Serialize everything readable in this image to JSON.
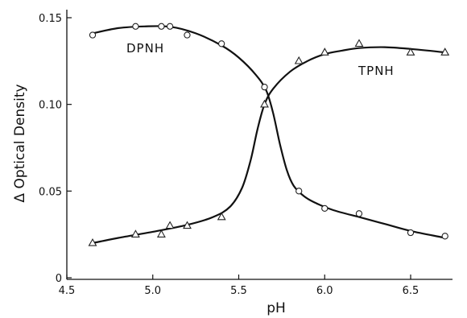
{
  "chart_data": {
    "type": "line",
    "title": "",
    "xlabel": "pH",
    "ylabel": "Δ Optical Density",
    "xlim": [
      4.5,
      6.8
    ],
    "ylim": [
      0,
      0.155
    ],
    "x_ticks": [
      4.5,
      5.0,
      5.5,
      6.0,
      6.5
    ],
    "x_tick_labels": [
      "4.5",
      "5.0",
      "5.5",
      "6.0",
      "6.5"
    ],
    "y_ticks": [
      0,
      0.05,
      0.1,
      0.15
    ],
    "y_tick_labels": [
      "0",
      "0.05",
      "0.10",
      "0.15"
    ],
    "grid": false,
    "legend": "none (series labelled directly on curves)",
    "series": [
      {
        "name": "DPNH",
        "marker": "circle",
        "x": [
          4.65,
          4.9,
          5.05,
          5.1,
          5.2,
          5.4,
          5.65,
          5.85,
          6.0,
          6.2,
          6.5,
          6.7
        ],
        "y": [
          0.14,
          0.145,
          0.145,
          0.145,
          0.14,
          0.135,
          0.11,
          0.05,
          0.04,
          0.037,
          0.026,
          0.024
        ],
        "curve": [
          [
            4.65,
            0.141
          ],
          [
            4.8,
            0.144
          ],
          [
            4.95,
            0.145
          ],
          [
            5.1,
            0.1448
          ],
          [
            5.25,
            0.141
          ],
          [
            5.4,
            0.134
          ],
          [
            5.5,
            0.127
          ],
          [
            5.6,
            0.117
          ],
          [
            5.66,
            0.108
          ],
          [
            5.7,
            0.095
          ],
          [
            5.74,
            0.077
          ],
          [
            5.78,
            0.062
          ],
          [
            5.82,
            0.053
          ],
          [
            5.88,
            0.047
          ],
          [
            5.95,
            0.043
          ],
          [
            6.05,
            0.039
          ],
          [
            6.2,
            0.035
          ],
          [
            6.35,
            0.031
          ],
          [
            6.5,
            0.027
          ],
          [
            6.7,
            0.023
          ]
        ]
      },
      {
        "name": "TPNH",
        "marker": "triangle",
        "x": [
          4.65,
          4.9,
          5.05,
          5.1,
          5.2,
          5.4,
          5.65,
          5.85,
          6.0,
          6.2,
          6.5,
          6.7
        ],
        "y": [
          0.02,
          0.025,
          0.025,
          0.03,
          0.03,
          0.035,
          0.1,
          0.125,
          0.13,
          0.135,
          0.13,
          0.13
        ],
        "curve": [
          [
            4.65,
            0.02
          ],
          [
            4.8,
            0.023
          ],
          [
            5.0,
            0.0265
          ],
          [
            5.2,
            0.0305
          ],
          [
            5.35,
            0.035
          ],
          [
            5.45,
            0.041
          ],
          [
            5.52,
            0.052
          ],
          [
            5.57,
            0.068
          ],
          [
            5.61,
            0.086
          ],
          [
            5.65,
            0.1
          ],
          [
            5.7,
            0.109
          ],
          [
            5.8,
            0.119
          ],
          [
            5.9,
            0.125
          ],
          [
            6.0,
            0.129
          ],
          [
            6.1,
            0.131
          ],
          [
            6.2,
            0.1325
          ],
          [
            6.35,
            0.133
          ],
          [
            6.5,
            0.132
          ],
          [
            6.7,
            0.13
          ]
        ]
      }
    ]
  }
}
